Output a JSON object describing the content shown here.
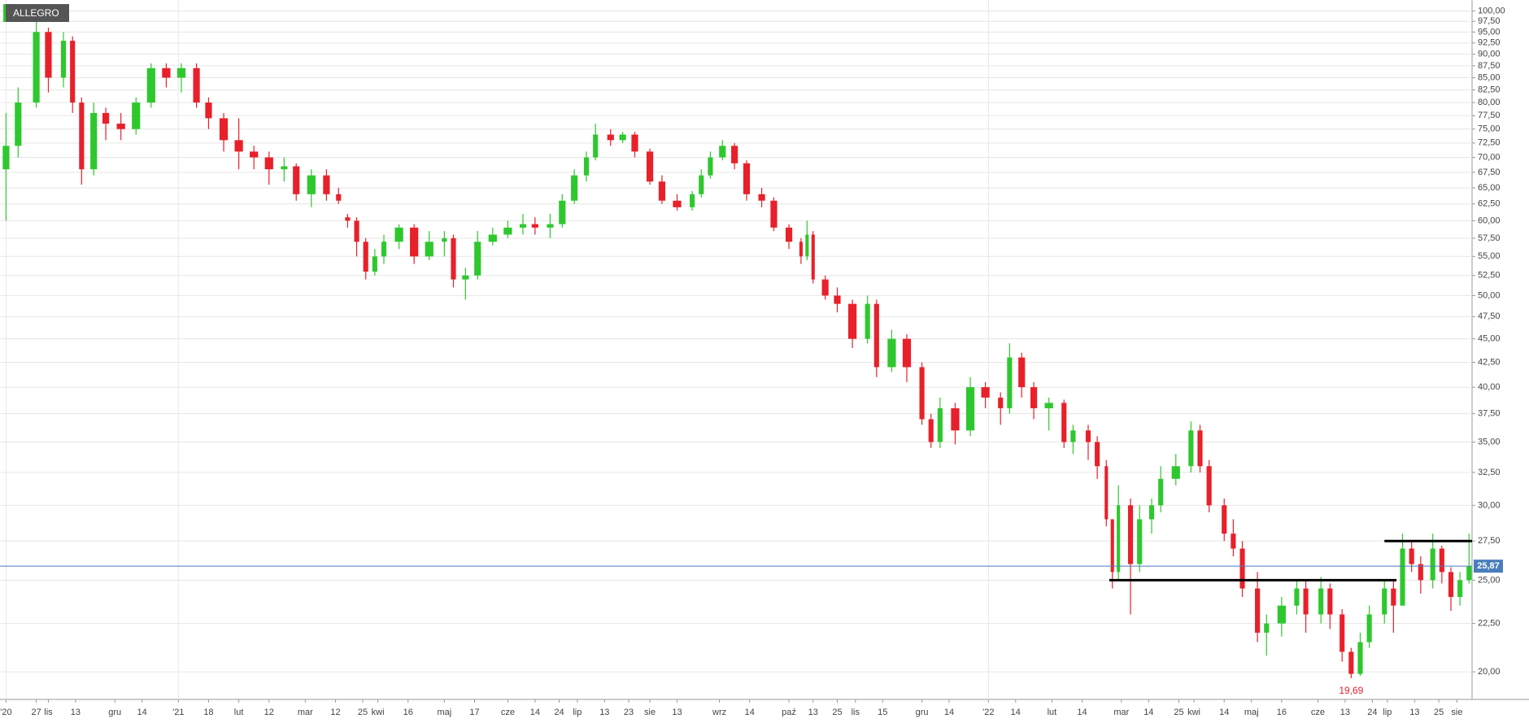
{
  "chart_data": {
    "type": "candlestick",
    "title": "ALLEGRO",
    "log_scale": true,
    "grid": true,
    "up_color": "#2ec82e",
    "down_color": "#e8202a",
    "xlim": [
      0,
      487
    ],
    "ylim": [
      18.7,
      102.7
    ],
    "yticks": [
      {
        "value": 20,
        "label": "20,00"
      },
      {
        "value": 22.5,
        "label": "22,50"
      },
      {
        "value": 25,
        "label": "25,00"
      },
      {
        "value": 27.5,
        "label": "27,50"
      },
      {
        "value": 30,
        "label": "30,00"
      },
      {
        "value": 32.5,
        "label": "32,50"
      },
      {
        "value": 35,
        "label": "35,00"
      },
      {
        "value": 37.5,
        "label": "37,50"
      },
      {
        "value": 40,
        "label": "40,00"
      },
      {
        "value": 42.5,
        "label": "42,50"
      },
      {
        "value": 45,
        "label": "45,00"
      },
      {
        "value": 47.5,
        "label": "47,50"
      },
      {
        "value": 50,
        "label": "50,00"
      },
      {
        "value": 52.5,
        "label": "52,50"
      },
      {
        "value": 55,
        "label": "55,00"
      },
      {
        "value": 57.5,
        "label": "57,50"
      },
      {
        "value": 60,
        "label": "60,00"
      },
      {
        "value": 62.5,
        "label": "62,50"
      },
      {
        "value": 65,
        "label": "65,00"
      },
      {
        "value": 67.5,
        "label": "67,50"
      },
      {
        "value": 70,
        "label": "70,00"
      },
      {
        "value": 72.5,
        "label": "72,50"
      },
      {
        "value": 75,
        "label": "75,00"
      },
      {
        "value": 77.5,
        "label": "77,50"
      },
      {
        "value": 80,
        "label": "80,00"
      },
      {
        "value": 82.5,
        "label": "82,50"
      },
      {
        "value": 85,
        "label": "85,00"
      },
      {
        "value": 87.5,
        "label": "87,50"
      },
      {
        "value": 90,
        "label": "90,00"
      },
      {
        "value": 92.5,
        "label": "92,50"
      },
      {
        "value": 95,
        "label": "95,00"
      },
      {
        "value": 97.5,
        "label": "97,50"
      },
      {
        "value": 100,
        "label": "100,00"
      }
    ],
    "xticks": [
      {
        "value": 2,
        "label": "'20"
      },
      {
        "value": 12,
        "label": "27"
      },
      {
        "value": 16,
        "label": "lis"
      },
      {
        "value": 25,
        "label": "13"
      },
      {
        "value": 38,
        "label": "gru"
      },
      {
        "value": 47,
        "label": "14"
      },
      {
        "value": 59,
        "label": "'21"
      },
      {
        "value": 69,
        "label": "18"
      },
      {
        "value": 79,
        "label": "lut"
      },
      {
        "value": 89,
        "label": "12"
      },
      {
        "value": 101,
        "label": "mar"
      },
      {
        "value": 111,
        "label": "12"
      },
      {
        "value": 120,
        "label": "25"
      },
      {
        "value": 125,
        "label": "kwi"
      },
      {
        "value": 135,
        "label": "16"
      },
      {
        "value": 147,
        "label": "maj"
      },
      {
        "value": 157,
        "label": "17"
      },
      {
        "value": 168,
        "label": "cze"
      },
      {
        "value": 177,
        "label": "14"
      },
      {
        "value": 185,
        "label": "24"
      },
      {
        "value": 191,
        "label": "lip"
      },
      {
        "value": 200,
        "label": "13"
      },
      {
        "value": 208,
        "label": "23"
      },
      {
        "value": 215,
        "label": "sie"
      },
      {
        "value": 224,
        "label": "13"
      },
      {
        "value": 238,
        "label": "wrz"
      },
      {
        "value": 248,
        "label": "14"
      },
      {
        "value": 261,
        "label": "paź"
      },
      {
        "value": 269,
        "label": "13"
      },
      {
        "value": 277,
        "label": "25"
      },
      {
        "value": 283,
        "label": "lis"
      },
      {
        "value": 292,
        "label": "15"
      },
      {
        "value": 305,
        "label": "gru"
      },
      {
        "value": 314,
        "label": "14"
      },
      {
        "value": 327,
        "label": "'22"
      },
      {
        "value": 336,
        "label": "14"
      },
      {
        "value": 348,
        "label": "lut"
      },
      {
        "value": 358,
        "label": "14"
      },
      {
        "value": 371,
        "label": "mar"
      },
      {
        "value": 380,
        "label": "14"
      },
      {
        "value": 390,
        "label": "25"
      },
      {
        "value": 395,
        "label": "kwi"
      },
      {
        "value": 405,
        "label": "14"
      },
      {
        "value": 414,
        "label": "maj"
      },
      {
        "value": 424,
        "label": "16"
      },
      {
        "value": 436,
        "label": "cze"
      },
      {
        "value": 445,
        "label": "13"
      },
      {
        "value": 454,
        "label": "24"
      },
      {
        "value": 459,
        "label": "lip"
      },
      {
        "value": 468,
        "label": "13"
      },
      {
        "value": 476,
        "label": "25"
      },
      {
        "value": 482,
        "label": "sie"
      }
    ],
    "candles": [
      [
        2,
        68,
        78,
        60,
        72
      ],
      [
        6,
        72,
        83,
        70,
        80
      ],
      [
        12,
        80,
        100,
        79,
        95
      ],
      [
        16,
        95,
        96,
        82,
        85
      ],
      [
        21,
        85,
        95,
        83,
        93
      ],
      [
        24,
        93,
        94,
        78,
        80
      ],
      [
        27,
        80,
        81,
        65.5,
        68
      ],
      [
        31,
        68,
        80,
        67,
        78
      ],
      [
        35,
        78,
        79,
        73,
        76
      ],
      [
        40,
        76,
        78,
        73,
        75
      ],
      [
        45,
        75,
        81,
        74,
        80
      ],
      [
        50,
        80,
        88,
        79,
        87
      ],
      [
        55,
        87,
        88,
        83,
        85
      ],
      [
        60,
        85,
        88,
        82,
        87
      ],
      [
        65,
        87,
        88,
        79,
        80
      ],
      [
        69,
        80,
        81,
        75,
        77
      ],
      [
        74,
        77,
        78,
        71,
        73
      ],
      [
        79,
        73,
        77,
        68,
        71
      ],
      [
        84,
        71,
        72,
        68,
        70
      ],
      [
        89,
        70,
        71,
        65.5,
        68
      ],
      [
        94,
        68,
        70,
        66,
        68.5
      ],
      [
        98,
        68.5,
        69,
        63,
        64
      ],
      [
        103,
        64,
        68,
        62,
        67
      ],
      [
        108,
        67,
        68,
        63,
        64
      ],
      [
        112,
        64,
        65,
        62.5,
        63
      ],
      [
        115,
        60.5,
        61,
        59,
        60
      ],
      [
        118,
        60,
        60.5,
        55,
        57
      ],
      [
        121,
        57,
        57.5,
        52,
        53
      ],
      [
        124,
        53,
        56,
        52.5,
        55
      ],
      [
        127,
        55,
        58,
        54,
        57
      ],
      [
        132,
        57,
        59.5,
        56,
        59
      ],
      [
        137,
        59,
        59.5,
        54,
        55
      ],
      [
        142,
        55,
        58.5,
        54.5,
        57
      ],
      [
        147,
        57,
        58.5,
        55,
        57.5
      ],
      [
        150,
        57.5,
        58,
        51,
        52
      ],
      [
        154,
        52,
        53.5,
        49.5,
        52.5
      ],
      [
        158,
        52.5,
        58.5,
        52,
        57
      ],
      [
        163,
        57,
        59,
        56.5,
        58
      ],
      [
        168,
        58,
        60,
        57.5,
        59
      ],
      [
        173,
        59,
        61,
        58,
        59.5
      ],
      [
        177,
        59.5,
        60.5,
        58,
        59
      ],
      [
        182,
        59,
        61,
        57.5,
        59.5
      ],
      [
        186,
        59.5,
        64,
        59,
        63
      ],
      [
        190,
        63,
        68,
        62.5,
        67
      ],
      [
        194,
        67,
        71,
        66,
        70
      ],
      [
        197,
        70,
        76,
        69.5,
        74
      ],
      [
        202,
        74,
        75,
        72,
        73
      ],
      [
        206,
        73,
        74.5,
        72.5,
        74
      ],
      [
        210,
        74,
        74.5,
        70,
        71
      ],
      [
        215,
        71,
        71.5,
        65.5,
        66
      ],
      [
        219,
        66,
        67,
        62.5,
        63
      ],
      [
        224,
        63,
        64,
        61.5,
        62
      ],
      [
        229,
        62,
        64.5,
        61.5,
        64
      ],
      [
        232,
        64,
        68,
        63.5,
        67
      ],
      [
        235,
        67,
        71,
        66.5,
        70
      ],
      [
        239,
        70,
        73,
        69.5,
        72
      ],
      [
        243,
        72,
        72.5,
        68,
        69
      ],
      [
        247,
        69,
        69.5,
        63,
        64
      ],
      [
        252,
        64,
        65,
        62,
        63
      ],
      [
        256,
        63,
        63.5,
        58.5,
        59
      ],
      [
        261,
        59,
        59.5,
        56,
        57
      ],
      [
        265,
        57,
        57.5,
        54,
        55
      ],
      [
        267,
        55,
        60,
        54.5,
        58
      ],
      [
        269,
        58,
        58.5,
        51.5,
        52
      ],
      [
        273,
        52,
        52.5,
        49.5,
        50
      ],
      [
        277,
        50,
        51,
        48,
        49
      ],
      [
        282,
        49,
        49.5,
        44,
        45
      ],
      [
        287,
        45,
        50,
        44.5,
        49
      ],
      [
        290,
        49,
        49.5,
        41,
        42
      ],
      [
        295,
        42,
        46,
        41.5,
        45
      ],
      [
        300,
        45,
        45.5,
        40.5,
        42
      ],
      [
        305,
        42,
        42.5,
        36.5,
        37
      ],
      [
        308,
        37,
        37.5,
        34.5,
        35
      ],
      [
        311,
        35,
        39,
        34.5,
        38
      ],
      [
        316,
        38,
        38.5,
        34.8,
        36
      ],
      [
        321,
        36,
        41,
        35.5,
        40
      ],
      [
        326,
        40,
        40.5,
        38,
        39
      ],
      [
        331,
        39,
        39.5,
        36.5,
        38
      ],
      [
        334,
        38,
        44.5,
        37.5,
        43
      ],
      [
        338,
        43,
        43.5,
        39,
        40
      ],
      [
        342,
        40,
        40.5,
        37,
        38
      ],
      [
        347,
        38,
        39,
        36,
        38.5
      ],
      [
        352,
        38.5,
        38.8,
        34.5,
        35
      ],
      [
        355,
        35,
        36.5,
        34,
        36
      ],
      [
        360,
        36,
        36.5,
        33.5,
        35
      ],
      [
        363,
        35,
        35.5,
        32,
        33
      ],
      [
        366,
        33,
        33.5,
        28.5,
        29
      ],
      [
        368,
        29,
        29,
        24.5,
        25.5
      ],
      [
        370,
        25.5,
        31.5,
        25,
        30
      ],
      [
        374,
        30,
        30.5,
        23,
        26
      ],
      [
        377,
        26,
        30,
        25.5,
        29
      ],
      [
        381,
        29,
        30.5,
        28,
        30
      ],
      [
        384,
        30,
        33,
        29.5,
        32
      ],
      [
        389,
        32,
        34,
        31.5,
        33
      ],
      [
        394,
        33,
        36.8,
        32.5,
        36
      ],
      [
        397,
        36,
        36.5,
        32.5,
        33
      ],
      [
        400,
        33,
        33.5,
        29.5,
        30
      ],
      [
        405,
        30,
        30.5,
        27.5,
        28
      ],
      [
        408,
        28,
        29,
        26.5,
        27
      ],
      [
        411,
        27,
        27.5,
        24,
        24.5
      ],
      [
        416,
        24.5,
        25.5,
        21.5,
        22
      ],
      [
        419,
        22,
        23,
        20.8,
        22.5
      ],
      [
        424,
        22.5,
        24,
        21.8,
        23.5
      ],
      [
        429,
        23.5,
        25,
        23,
        24.5
      ],
      [
        432,
        24.5,
        25,
        22,
        23
      ],
      [
        437,
        23,
        25.2,
        22.5,
        24.5
      ],
      [
        440,
        24.5,
        24.8,
        22.2,
        23
      ],
      [
        444,
        23,
        23.3,
        20.5,
        21
      ],
      [
        447,
        21,
        21.2,
        19.69,
        19.9
      ],
      [
        450,
        19.9,
        22,
        19.8,
        21.5
      ],
      [
        453,
        21.5,
        23.5,
        21.2,
        23
      ],
      [
        458,
        23,
        25,
        22.5,
        24.5
      ],
      [
        461,
        24.5,
        25,
        22,
        23.5
      ],
      [
        464,
        23.5,
        28,
        23.5,
        27
      ],
      [
        467,
        27,
        27.5,
        25.5,
        26
      ],
      [
        470,
        26,
        26.5,
        24.2,
        25
      ],
      [
        474,
        25,
        28,
        24.5,
        27
      ],
      [
        477,
        27,
        27.2,
        24.8,
        25.5
      ],
      [
        480,
        25.5,
        25.8,
        23.2,
        24
      ],
      [
        483,
        24,
        25.5,
        23.5,
        25
      ],
      [
        486,
        25,
        28,
        24.8,
        25.87
      ]
    ],
    "hlines": [
      {
        "y": 27.5,
        "x": [
          458,
          487
        ]
      },
      {
        "y": 25,
        "x": [
          367,
          462
        ]
      }
    ],
    "last_price": {
      "value": 25.87,
      "label": "25,87",
      "color": "#4a7ebb"
    },
    "low_label": {
      "value": 19.69,
      "label": "19,69",
      "x": 447,
      "color": "#e8202a"
    }
  }
}
